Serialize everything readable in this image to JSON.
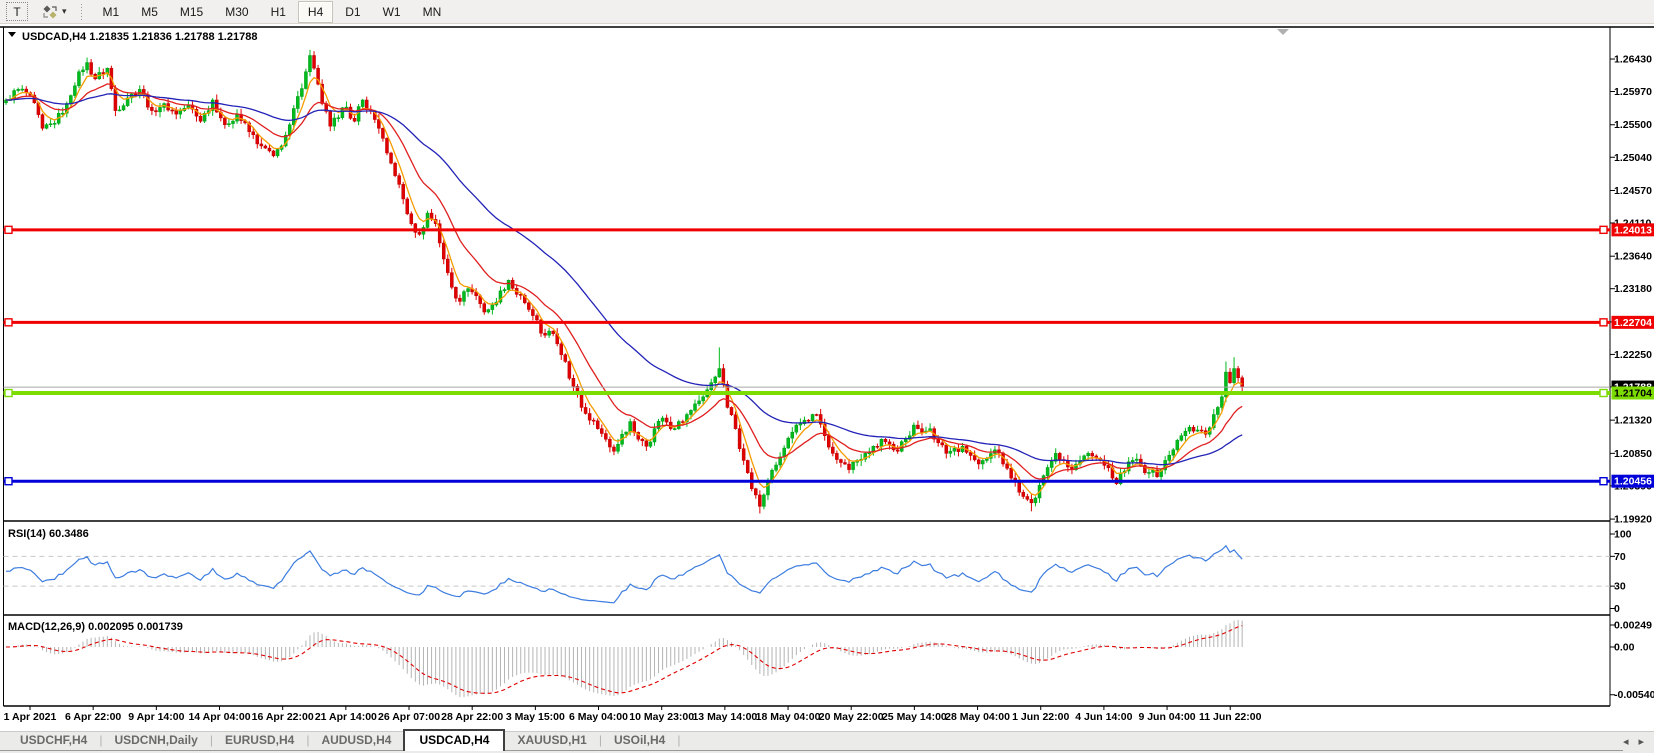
{
  "toolbar": {
    "text_tool_label": "T",
    "styler_dropdown_glyph": "▾",
    "timeframes": [
      "M1",
      "M5",
      "M15",
      "M30",
      "H1",
      "H4",
      "D1",
      "W1",
      "MN"
    ],
    "active_timeframe": "H4"
  },
  "chart": {
    "info_line": "USDCAD,H4  1.21835 1.21836 1.21788 1.21788",
    "symbol": "USDCAD",
    "period": "H4",
    "ohlc": {
      "open": "1.21835",
      "high": "1.21836",
      "low": "1.21788",
      "close": "1.21788"
    },
    "y_axis_labels": [
      "1.26430",
      "1.25970",
      "1.25500",
      "1.25040",
      "1.24570",
      "1.24110",
      "1.23640",
      "1.23180",
      "1.22710",
      "1.22250",
      "1.21790",
      "1.21320",
      "1.20850",
      "1.20390",
      "1.19920"
    ],
    "x_axis_labels": [
      "1 Apr 2021",
      "6 Apr 22:00",
      "9 Apr 14:00",
      "14 Apr 04:00",
      "16 Apr 22:00",
      "21 Apr 14:00",
      "26 Apr 07:00",
      "28 Apr 22:00",
      "3 May 15:00",
      "6 May 04:00",
      "10 May 23:00",
      "13 May 14:00",
      "18 May 04:00",
      "20 May 22:00",
      "25 May 14:00",
      "28 May 04:00",
      "1 Jun 22:00",
      "4 Jun 14:00",
      "9 Jun 04:00",
      "11 Jun 22:00"
    ],
    "hlines": [
      {
        "name": "resistance-upper",
        "price": 1.24013,
        "label": "1.24013",
        "color": "#f00000",
        "text_color": "#ffffff",
        "width": 3
      },
      {
        "name": "resistance-lower",
        "price": 1.22704,
        "label": "1.22704",
        "color": "#f00000",
        "text_color": "#ffffff",
        "width": 3
      },
      {
        "name": "support-blue",
        "price": 1.20456,
        "label": "1.20456",
        "color": "#0000d8",
        "text_color": "#ffffff",
        "width": 3
      },
      {
        "name": "pivot-green",
        "price": 1.21704,
        "label": "1.21704",
        "color": "#7cdc00",
        "text_color": "#000000",
        "width": 4
      }
    ],
    "current_price": {
      "price": 1.21788,
      "label": "1.21788",
      "line_color": "#a8a8a8",
      "box_color": "#000000",
      "text_color": "#ffffff"
    },
    "rsi_panel": {
      "label": "RSI(14) 60.3486",
      "levels": [
        {
          "value": 100,
          "label": "100",
          "dashed": false
        },
        {
          "value": 70,
          "label": "70",
          "dashed": true
        },
        {
          "value": 30,
          "label": "30",
          "dashed": true
        },
        {
          "value": 0,
          "label": "0",
          "dashed": false
        }
      ],
      "line_color": "#3d7de0",
      "level_color": "#c8c8c8"
    },
    "macd_panel": {
      "label": "MACD(12,26,9) 0.002095 0.001739",
      "axis_labels": [
        {
          "value": 0.00249,
          "label": "0.00249"
        },
        {
          "value": 0,
          "label": "0.00"
        },
        {
          "value": -0.005403,
          "label": "-0.005403"
        }
      ],
      "histogram_color": "#b4b4b4",
      "signal_color": "#e00000"
    },
    "shift_marker_color": "#b0b0b0"
  },
  "chart_data": {
    "type": "candlestick",
    "symbol": "USDCAD",
    "timeframe": "H4",
    "visible_range": {
      "start": "1 Apr 2021",
      "end": "11 Jun 2021"
    },
    "candle_count": 306,
    "last_close": 1.21788,
    "price_scale": {
      "top": 1.26869,
      "bottom": 1.19907
    },
    "bull_color": "#00bb1c",
    "bull_border": "#009a17",
    "bear_color": "#e00000",
    "bear_border": "#bb0000",
    "moving_averages": [
      {
        "name": "ma-fast",
        "period": 5,
        "color": "#f59c00"
      },
      {
        "name": "ma-mid",
        "period": 16,
        "color": "#e02020"
      },
      {
        "name": "ma-slow",
        "period": 48,
        "color": "#2323b8"
      }
    ],
    "rsi": {
      "period": 14,
      "last_value": 60.3486
    },
    "macd": {
      "fast": 12,
      "slow": 26,
      "signal": 9,
      "last_main": 0.002095,
      "last_signal": 0.001739
    },
    "price_anchors": [
      [
        0,
        1.2585
      ],
      [
        3,
        1.26
      ],
      [
        6,
        1.2592
      ],
      [
        9,
        1.2545
      ],
      [
        12,
        1.2552
      ],
      [
        15,
        1.258
      ],
      [
        18,
        1.2625
      ],
      [
        20,
        1.2638
      ],
      [
        22,
        1.2615
      ],
      [
        25,
        1.263
      ],
      [
        27,
        1.257
      ],
      [
        30,
        1.2588
      ],
      [
        33,
        1.26
      ],
      [
        36,
        1.257
      ],
      [
        39,
        1.258
      ],
      [
        42,
        1.2565
      ],
      [
        45,
        1.2578
      ],
      [
        48,
        1.2555
      ],
      [
        51,
        1.2585
      ],
      [
        54,
        1.255
      ],
      [
        57,
        1.2565
      ],
      [
        60,
        1.254
      ],
      [
        63,
        1.252
      ],
      [
        66,
        1.2506
      ],
      [
        68,
        1.252
      ],
      [
        70,
        1.255
      ],
      [
        72,
        1.259
      ],
      [
        74,
        1.2625
      ],
      [
        75,
        1.2648
      ],
      [
        76,
        1.263
      ],
      [
        78,
        1.258
      ],
      [
        80,
        1.2548
      ],
      [
        82,
        1.256
      ],
      [
        84,
        1.2575
      ],
      [
        86,
        1.2555
      ],
      [
        88,
        1.2585
      ],
      [
        90,
        1.257
      ],
      [
        92,
        1.2545
      ],
      [
        94,
        1.251
      ],
      [
        96,
        1.2478
      ],
      [
        98,
        1.2445
      ],
      [
        100,
        1.241
      ],
      [
        102,
        1.2395
      ],
      [
        104,
        1.2425
      ],
      [
        106,
        1.241
      ],
      [
        108,
        1.236
      ],
      [
        110,
        1.232
      ],
      [
        112,
        1.23
      ],
      [
        114,
        1.2318
      ],
      [
        116,
        1.2308
      ],
      [
        118,
        1.2285
      ],
      [
        120,
        1.2295
      ],
      [
        122,
        1.2315
      ],
      [
        124,
        1.233
      ],
      [
        126,
        1.231
      ],
      [
        128,
        1.2298
      ],
      [
        130,
        1.228
      ],
      [
        132,
        1.2255
      ],
      [
        134,
        1.2258
      ],
      [
        136,
        1.224
      ],
      [
        138,
        1.2215
      ],
      [
        140,
        1.218
      ],
      [
        142,
        1.215
      ],
      [
        144,
        1.2132
      ],
      [
        146,
        1.212
      ],
      [
        148,
        1.2105
      ],
      [
        150,
        1.2088
      ],
      [
        152,
        1.2112
      ],
      [
        154,
        1.213
      ],
      [
        156,
        1.2105
      ],
      [
        158,
        1.2095
      ],
      [
        160,
        1.212
      ],
      [
        162,
        1.2135
      ],
      [
        164,
        1.212
      ],
      [
        166,
        1.213
      ],
      [
        168,
        1.214
      ],
      [
        170,
        1.2155
      ],
      [
        172,
        1.2165
      ],
      [
        174,
        1.2185
      ],
      [
        176,
        1.2205
      ],
      [
        178,
        1.215
      ],
      [
        180,
        1.212
      ],
      [
        182,
        1.2075
      ],
      [
        184,
        1.2035
      ],
      [
        186,
        1.201
      ],
      [
        188,
        1.2045
      ],
      [
        191,
        1.208
      ],
      [
        194,
        1.2115
      ],
      [
        197,
        1.2132
      ],
      [
        200,
        1.214
      ],
      [
        202,
        1.211
      ],
      [
        204,
        1.2085
      ],
      [
        206,
        1.2072
      ],
      [
        208,
        1.2062
      ],
      [
        210,
        1.2075
      ],
      [
        212,
        1.2085
      ],
      [
        214,
        1.2095
      ],
      [
        216,
        1.2105
      ],
      [
        218,
        1.2098
      ],
      [
        220,
        1.2088
      ],
      [
        222,
        1.2105
      ],
      [
        224,
        1.2125
      ],
      [
        226,
        1.2115
      ],
      [
        228,
        1.212
      ],
      [
        230,
        1.21
      ],
      [
        232,
        1.2085
      ],
      [
        234,
        1.2092
      ],
      [
        236,
        1.2095
      ],
      [
        238,
        1.2082
      ],
      [
        240,
        1.207
      ],
      [
        242,
        1.2078
      ],
      [
        244,
        1.209
      ],
      [
        246,
        1.207
      ],
      [
        248,
        1.205
      ],
      [
        250,
        1.203
      ],
      [
        252,
        1.202
      ],
      [
        253,
        1.2015
      ],
      [
        255,
        1.204
      ],
      [
        257,
        1.2065
      ],
      [
        259,
        1.2085
      ],
      [
        261,
        1.2075
      ],
      [
        263,
        1.2062
      ],
      [
        265,
        1.2075
      ],
      [
        267,
        1.2085
      ],
      [
        269,
        1.2078
      ],
      [
        271,
        1.2068
      ],
      [
        273,
        1.205
      ],
      [
        274,
        1.2042
      ],
      [
        276,
        1.206
      ],
      [
        278,
        1.2075
      ],
      [
        280,
        1.2068
      ],
      [
        282,
        1.2058
      ],
      [
        284,
        1.2052
      ],
      [
        286,
        1.2075
      ],
      [
        288,
        1.209
      ],
      [
        290,
        1.211
      ],
      [
        292,
        1.2122
      ],
      [
        294,
        1.2118
      ],
      [
        296,
        1.2112
      ],
      [
        298,
        1.214
      ],
      [
        299,
        1.215
      ],
      [
        300,
        1.2165
      ],
      [
        301,
        1.22
      ],
      [
        302,
        1.2185
      ],
      [
        303,
        1.2205
      ],
      [
        304,
        1.2192
      ],
      [
        305,
        1.21788
      ]
    ],
    "spikes": [
      [
        20,
        "high",
        1.2645
      ],
      [
        75,
        "high",
        1.2656
      ],
      [
        176,
        "high",
        1.2235
      ],
      [
        186,
        "low",
        1.2
      ],
      [
        253,
        "low",
        1.2003
      ],
      [
        301,
        "high",
        1.2215
      ],
      [
        303,
        "high",
        1.2221
      ]
    ]
  },
  "tabbar": {
    "tabs": [
      "USDCHF,H4",
      "USDCNH,Daily",
      "EURUSD,H4",
      "AUDUSD,H4",
      "USDCAD,H4",
      "XAUUSD,H1",
      "USOil,H4"
    ],
    "active": "USDCAD,H4",
    "separator": "|",
    "left_arrow": "◂",
    "right_arrow": "▸"
  }
}
